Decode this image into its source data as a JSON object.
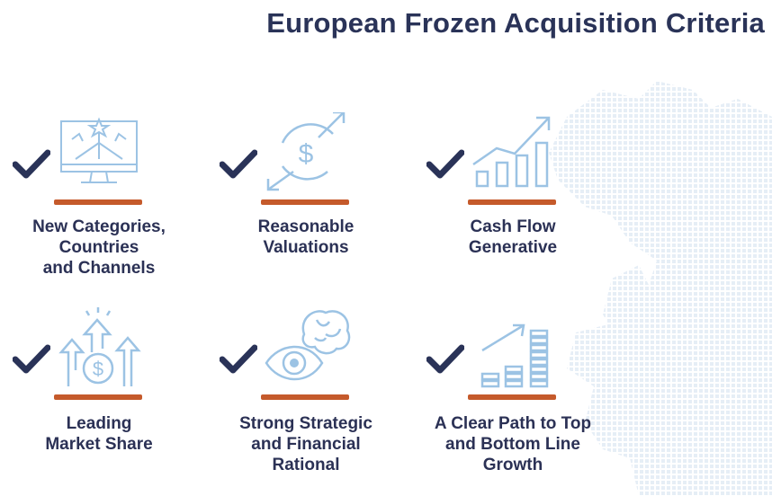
{
  "title": "European Frozen Acquisition Criteria",
  "colors": {
    "title": "#2a3358",
    "check": "#2a3358",
    "accent_bar": "#c55a2b",
    "icon_line": "#9cc3e4",
    "label": "#2b3155",
    "map_dots": "#e6eef6"
  },
  "criteria": [
    {
      "icon": "computer-arrows-icon",
      "lines": [
        "New Categories,",
        "Countries",
        "and Channels"
      ]
    },
    {
      "icon": "dollar-exchange-icon",
      "lines": [
        "Reasonable",
        "Valuations"
      ]
    },
    {
      "icon": "growth-bar-chart-icon",
      "lines": [
        "Cash Flow",
        "Generative"
      ]
    },
    {
      "icon": "money-growth-arrows-icon",
      "lines": [
        "Leading",
        "Market Share"
      ]
    },
    {
      "icon": "brain-eye-icon",
      "lines": [
        "Strong Strategic",
        "and Financial",
        "Rational"
      ]
    },
    {
      "icon": "stacked-growth-chart-icon",
      "lines": [
        "A Clear Path to Top",
        "and Bottom Line",
        "Growth"
      ]
    }
  ]
}
